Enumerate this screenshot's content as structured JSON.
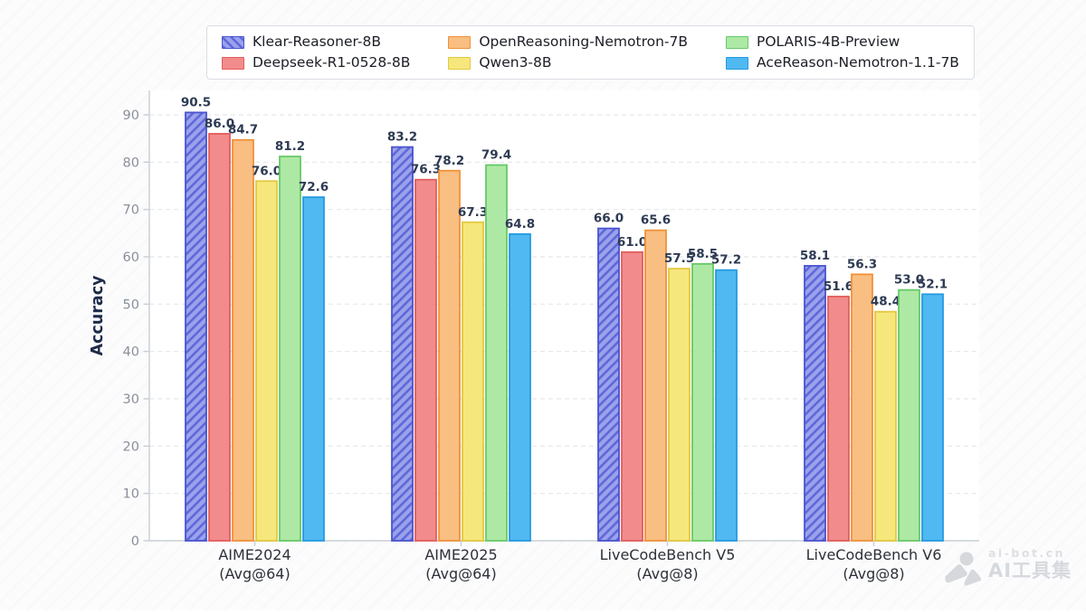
{
  "chart_data": {
    "type": "bar",
    "title": "",
    "xlabel": "",
    "ylabel": "Accuracy",
    "ylim": [
      0,
      95
    ],
    "yticks": [
      0,
      10,
      20,
      30,
      40,
      50,
      60,
      70,
      80,
      90
    ],
    "grid": "horizontal-dashed",
    "legend_position": "top-center",
    "value_labels": "one-decimal-above-bars",
    "categories": [
      {
        "line1": "AIME2024",
        "line2": "(Avg@64)"
      },
      {
        "line1": "AIME2025",
        "line2": "(Avg@64)"
      },
      {
        "line1": "LiveCodeBench V5",
        "line2": "(Avg@8)"
      },
      {
        "line1": "LiveCodeBench V6",
        "line2": "(Avg@8)"
      }
    ],
    "series": [
      {
        "name": "Klear-Reasoner-8B",
        "values": [
          90.5,
          83.2,
          66.0,
          58.1
        ],
        "fill": "#9aa2ec",
        "border": "#4a53cd",
        "hatch": true,
        "hatch_color": "#5f68d8"
      },
      {
        "name": "Deepseek-R1-0528-8B",
        "values": [
          86.0,
          76.3,
          61.0,
          51.6
        ],
        "fill": "#f28b8b",
        "border": "#e25d5d",
        "hatch": false
      },
      {
        "name": "OpenReasoning-Nemotron-7B",
        "values": [
          84.7,
          78.2,
          65.6,
          56.3
        ],
        "fill": "#f9be81",
        "border": "#f0913a",
        "hatch": false
      },
      {
        "name": "Qwen3-8B",
        "values": [
          76.0,
          67.3,
          57.5,
          48.4
        ],
        "fill": "#f6e77d",
        "border": "#e3c83f",
        "hatch": false
      },
      {
        "name": "POLARIS-4B-Preview",
        "values": [
          81.2,
          79.4,
          58.5,
          53.0
        ],
        "fill": "#ade9a5",
        "border": "#67c967",
        "hatch": false
      },
      {
        "name": "AceReason-Nemotron-1.1-7B",
        "values": [
          72.6,
          64.8,
          57.2,
          52.1
        ],
        "fill": "#50b9f1",
        "border": "#259ae0",
        "hatch": false
      }
    ],
    "colors": {
      "axis_spine": "#c9cdd4",
      "gridline": "#e4e7eb",
      "tick_label": "#8a8f99",
      "value_label": "#2d3a53",
      "ylabel": "#1d2b4a",
      "category_label": "#2d3138",
      "plot_background": "#ffffff"
    }
  },
  "watermark": {
    "site": "ai-bot.cn",
    "brand": "AI工具集"
  }
}
